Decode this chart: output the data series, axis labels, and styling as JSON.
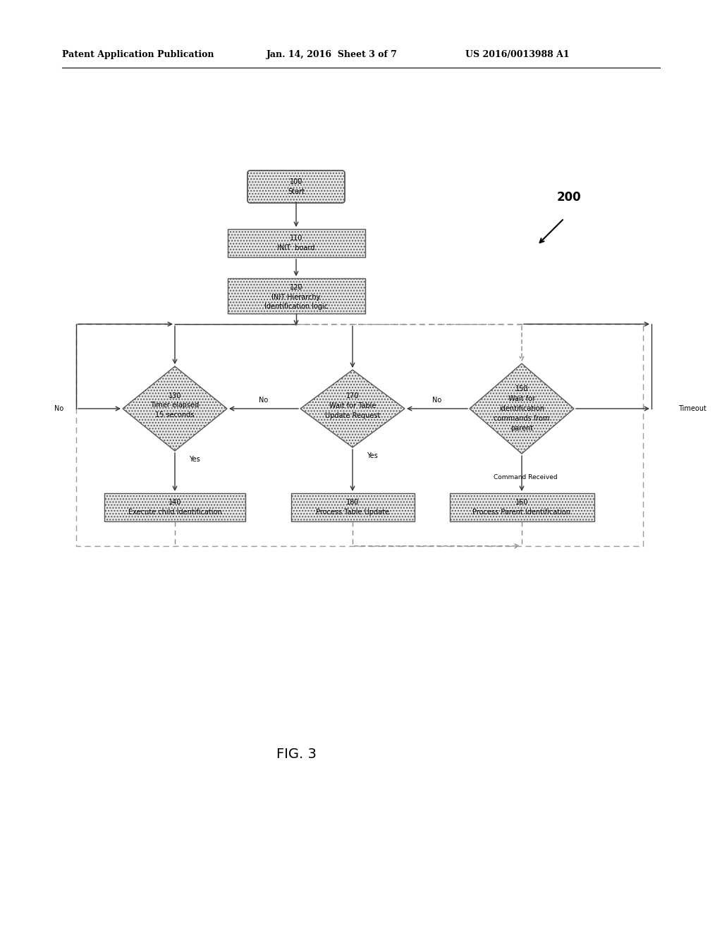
{
  "bg_color": "#ffffff",
  "header_left": "Patent Application Publication",
  "header_center": "Jan. 14, 2016  Sheet 3 of 7",
  "header_right": "US 2016/0013988 A1",
  "fig_label": "FIG. 3",
  "ref_num": "200",
  "line_color": "#333333",
  "dashed_line_color": "#888888",
  "text_color": "#000000",
  "font_size": 7.0,
  "hatch_color": "#bbbbbb",
  "node_face": "#e8e8e8",
  "node_edge": "#555555"
}
